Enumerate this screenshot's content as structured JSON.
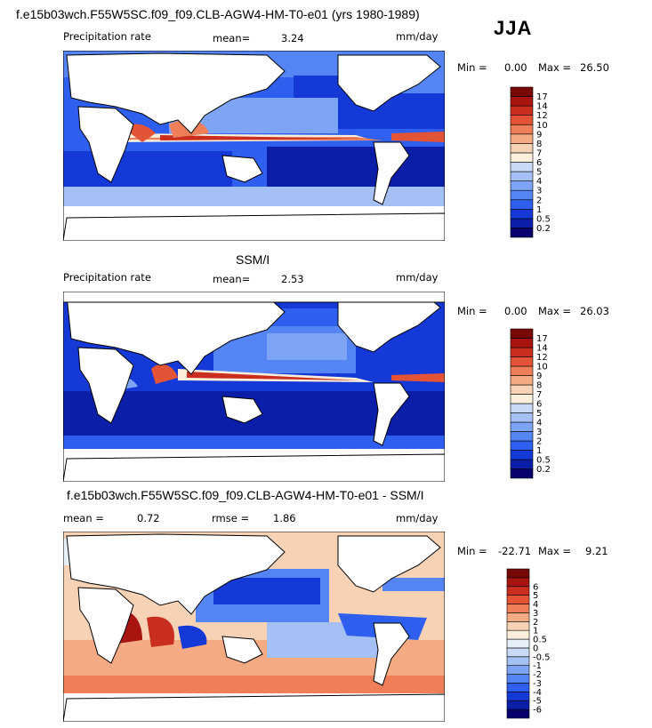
{
  "header": {
    "title": "f.e15b03wch.F55W5SC.f09_f09.CLB-AGW4-HM-T0-e01 (yrs 1980-1989)",
    "season": "JJA"
  },
  "panels": [
    {
      "title": "",
      "field_label": "Precipitation rate",
      "stat1_label": "mean=",
      "stat1_value": "3.24",
      "stat2_label": "",
      "stat2_value": "",
      "units": "mm/day",
      "min_label": "Min =",
      "min_value": "0.00",
      "max_label": "Max =",
      "max_value": "26.50"
    },
    {
      "title": "SSM/I",
      "field_label": "Precipitation rate",
      "stat1_label": "mean=",
      "stat1_value": "2.53",
      "stat2_label": "",
      "stat2_value": "",
      "units": "mm/day",
      "min_label": "Min =",
      "min_value": "0.00",
      "max_label": "Max =",
      "max_value": "26.03"
    },
    {
      "title": "f.e15b03wch.F55W5SC.f09_f09.CLB-AGW4-HM-T0-e01 - SSM/I",
      "field_label": "",
      "stat1_label": "mean =",
      "stat1_value": "0.72",
      "stat2_label": "rmse =",
      "stat2_value": "1.86",
      "units": "mm/day",
      "min_label": "Min =",
      "min_value": "-22.71",
      "max_label": "Max =",
      "max_value": "9.21"
    }
  ],
  "colors": {
    "precip_scale": [
      "#08006e",
      "#0a1ea8",
      "#1439d6",
      "#2e5fef",
      "#5585f5",
      "#7ea4f5",
      "#a5c0f4",
      "#c8daf5",
      "#fbefdc",
      "#f7d2b5",
      "#f4ab84",
      "#ee7f59",
      "#e35335",
      "#c92e1e",
      "#a81510",
      "#780805"
    ],
    "diff_scale": [
      "#08006e",
      "#0a1ea8",
      "#1439d6",
      "#2e5fef",
      "#5585f5",
      "#7ea4f5",
      "#a5c0f4",
      "#c8daf5",
      "#e6effa",
      "#fbefdc",
      "#f7d2b5",
      "#f4ab84",
      "#ee7f59",
      "#e35335",
      "#c92e1e",
      "#a81510",
      "#780805"
    ]
  },
  "chart_data": [
    {
      "type": "heatmap",
      "title": "",
      "subtitle": "Precipitation rate",
      "mean": 3.24,
      "units": "mm/day",
      "min": 0.0,
      "max": 26.5,
      "colorbar_levels": [
        "0.2",
        "0.5",
        "1",
        "2",
        "3",
        "4",
        "5",
        "6",
        "7",
        "8",
        "9",
        "10",
        "12",
        "14",
        "17"
      ],
      "map": "global, Pacific-centered (0E–360E, 90S–90N)"
    },
    {
      "type": "heatmap",
      "title": "SSM/I",
      "subtitle": "Precipitation rate",
      "mean": 2.53,
      "units": "mm/day",
      "min": 0.0,
      "max": 26.03,
      "colorbar_levels": [
        "0.2",
        "0.5",
        "1",
        "2",
        "3",
        "4",
        "5",
        "6",
        "7",
        "8",
        "9",
        "10",
        "12",
        "14",
        "17"
      ],
      "map": "global, Pacific-centered (0E–360E, 90S–90N)"
    },
    {
      "type": "heatmap",
      "title": "f.e15b03wch.F55W5SC.f09_f09.CLB-AGW4-HM-T0-e01 - SSM/I",
      "mean": 0.72,
      "rmse": 1.86,
      "units": "mm/day",
      "min": -22.71,
      "max": 9.21,
      "colorbar_levels": [
        "-6",
        "-5",
        "-4",
        "-3",
        "-2",
        "-1",
        "-0.5",
        "0",
        "0.5",
        "1",
        "2",
        "3",
        "4",
        "5",
        "6"
      ],
      "map": "global, Pacific-centered (0E–360E, 90S–90N)"
    }
  ]
}
